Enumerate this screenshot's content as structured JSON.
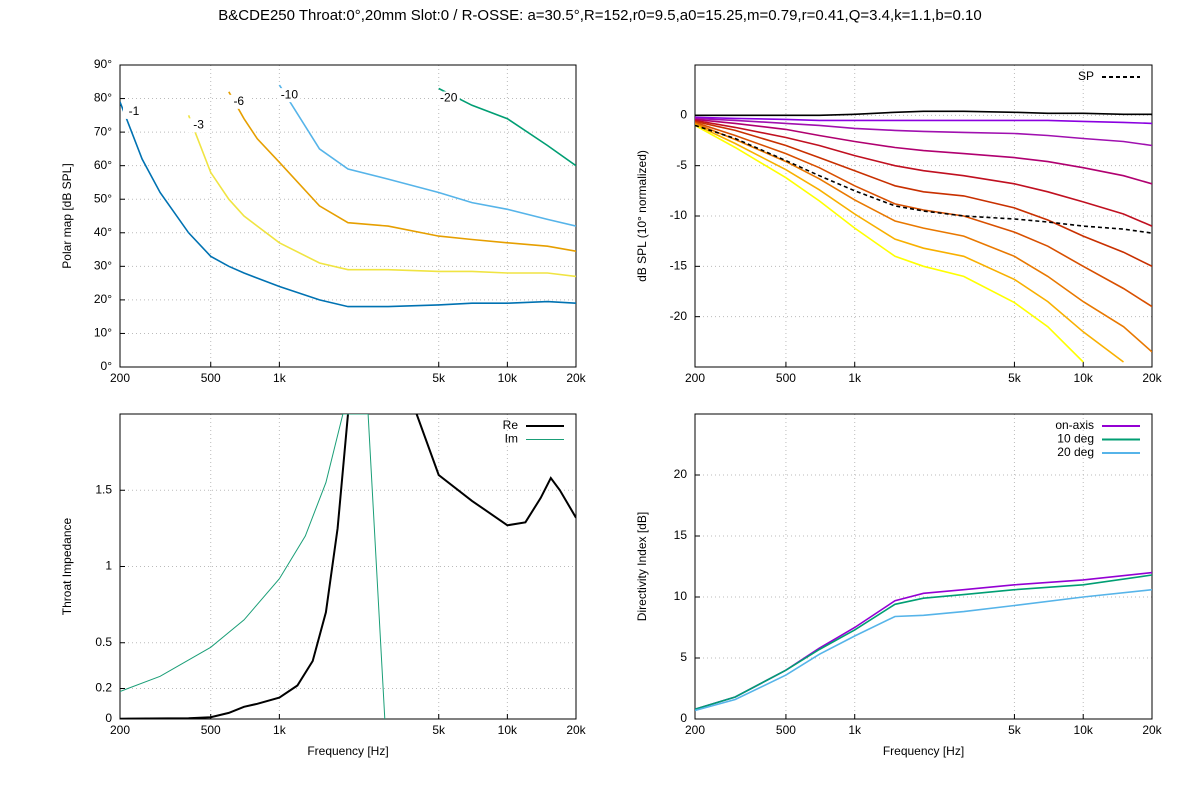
{
  "title": "B&CDE250 Throat:0°,20mm Slot:0 / R-OSSE: a=30.5°,R=152,r0=9.5,a0=15.25,m=0.79,r=0.41,Q=3.4,k=1.1,b=0.10",
  "chart_data": [
    {
      "type": "line",
      "ylabel": "Polar map [dB SPL]",
      "xlog": true,
      "grid": true,
      "contour_labels": true,
      "xlim": [
        200,
        20000
      ],
      "xticks": [
        200,
        500,
        {
          "value": 1000,
          "label": "1k"
        },
        {
          "value": 5000,
          "label": "5k"
        },
        {
          "value": 10000,
          "label": "10k"
        },
        {
          "value": 20000,
          "label": "20k"
        }
      ],
      "ylim": [
        0,
        90
      ],
      "yticks": [
        {
          "value": 0,
          "label": "0°"
        },
        {
          "value": 10,
          "label": "10°"
        },
        {
          "value": 20,
          "label": "20°"
        },
        {
          "value": 30,
          "label": "30°"
        },
        {
          "value": 40,
          "label": "40°"
        },
        {
          "value": 50,
          "label": "50°"
        },
        {
          "value": 60,
          "label": "60°"
        },
        {
          "value": 70,
          "label": "70°"
        },
        {
          "value": 80,
          "label": "80°"
        },
        {
          "value": 90,
          "label": "90°"
        }
      ],
      "x": [
        200,
        250,
        300,
        400,
        500,
        600,
        700,
        800,
        1000,
        1500,
        2000,
        3000,
        5000,
        7000,
        10000,
        15000,
        20000
      ],
      "series": [
        {
          "name": "-1",
          "color": "#0072b2",
          "values": [
            79,
            62,
            52,
            40,
            33,
            30,
            28,
            26.5,
            24,
            20,
            18,
            18,
            18.5,
            19,
            19,
            19.5,
            19
          ]
        },
        {
          "name": "-3",
          "color": "#f0e442",
          "values": [
            null,
            null,
            null,
            75,
            58,
            50,
            45,
            42,
            37,
            31,
            29,
            29,
            28.5,
            28.5,
            28,
            28,
            27
          ]
        },
        {
          "name": "-6",
          "color": "#e69f00",
          "values": [
            null,
            null,
            null,
            null,
            null,
            82,
            74,
            68,
            61,
            48,
            43,
            42,
            39,
            38,
            37,
            36,
            34.5
          ]
        },
        {
          "name": "-10",
          "color": "#56b4e9",
          "values": [
            null,
            null,
            null,
            null,
            null,
            null,
            null,
            null,
            84,
            65,
            59,
            56,
            52,
            49,
            47,
            44,
            42
          ]
        },
        {
          "name": "-20",
          "color": "#009e73",
          "values": [
            null,
            null,
            null,
            null,
            null,
            null,
            null,
            null,
            null,
            null,
            null,
            null,
            83,
            78,
            74,
            66,
            60
          ]
        }
      ]
    },
    {
      "type": "line",
      "ylabel": "dB SPL (10° normalized)",
      "xlog": true,
      "grid": true,
      "legend": "upper right",
      "xlim": [
        200,
        20000
      ],
      "xticks": [
        200,
        500,
        {
          "value": 1000,
          "label": "1k"
        },
        {
          "value": 5000,
          "label": "5k"
        },
        {
          "value": 10000,
          "label": "10k"
        },
        {
          "value": 20000,
          "label": "20k"
        }
      ],
      "ylim": [
        -25,
        5
      ],
      "yticks": [
        0,
        -5,
        -10,
        -15,
        -20
      ],
      "x": [
        200,
        300,
        500,
        700,
        1000,
        1500,
        2000,
        3000,
        5000,
        7000,
        10000,
        15000,
        20000
      ],
      "series": [
        {
          "color": "#000000",
          "values": [
            0,
            0,
            0,
            0,
            0.1,
            0.3,
            0.4,
            0.4,
            0.3,
            0.2,
            0.2,
            0.1,
            0.1
          ]
        },
        {
          "color": "#8a00e0",
          "values": [
            -0.2,
            -0.3,
            -0.4,
            -0.5,
            -0.5,
            -0.5,
            -0.5,
            -0.5,
            -0.5,
            -0.5,
            -0.6,
            -0.7,
            -0.8
          ]
        },
        {
          "color": "#a010b0",
          "values": [
            -0.3,
            -0.5,
            -0.8,
            -1,
            -1.3,
            -1.5,
            -1.6,
            -1.7,
            -1.8,
            -2,
            -2.3,
            -2.6,
            -3
          ]
        },
        {
          "color": "#b00070",
          "values": [
            -0.4,
            -0.8,
            -1.4,
            -2,
            -2.6,
            -3.2,
            -3.5,
            -3.8,
            -4.2,
            -4.6,
            -5.2,
            -6,
            -6.8
          ]
        },
        {
          "color": "#c01020",
          "values": [
            -0.5,
            -1.2,
            -2.2,
            -3,
            -4,
            -5,
            -5.5,
            -6,
            -6.8,
            -7.6,
            -8.6,
            -9.8,
            -11
          ]
        },
        {
          "color": "#c83000",
          "values": [
            -0.6,
            -1.5,
            -3,
            -4.2,
            -5.5,
            -7,
            -7.6,
            -8,
            -9.2,
            -10.4,
            -12,
            -13.6,
            -15
          ]
        },
        {
          "color": "#d85000",
          "values": [
            -0.7,
            -2,
            -3.8,
            -5.2,
            -7,
            -8.8,
            -9.4,
            -10,
            -11.6,
            -13,
            -15,
            -17.2,
            -19
          ]
        },
        {
          "color": "#e87800",
          "values": [
            -0.8,
            -2.4,
            -4.6,
            -6.3,
            -8.4,
            -10.5,
            -11.2,
            -12,
            -14,
            -16,
            -18.5,
            -21,
            -23.5
          ]
        },
        {
          "color": "#f8b000",
          "values": [
            -0.9,
            -2.8,
            -5.4,
            -7.4,
            -9.8,
            -12.3,
            -13.2,
            -14,
            -16.3,
            -18.5,
            -21.5,
            -24.5,
            null
          ]
        },
        {
          "color": "#ffff00",
          "values": [
            -1,
            -3.2,
            -6.2,
            -8.5,
            -11.2,
            -14,
            -15,
            -16,
            -18.6,
            -21,
            -24.5,
            null,
            null
          ]
        },
        {
          "name": "SP",
          "color": "#000000",
          "dashed": true,
          "values": [
            -1,
            -2.3,
            -4.5,
            -6,
            -7.5,
            -9,
            -9.5,
            -10,
            -10.3,
            -10.6,
            -11,
            -11.3,
            -11.7
          ]
        }
      ]
    },
    {
      "type": "line",
      "ylabel": "Throat Impedance",
      "xlabel": "Frequency [Hz]",
      "xlog": true,
      "grid": true,
      "legend": "upper right",
      "xlim": [
        200,
        20000
      ],
      "xticks": [
        200,
        500,
        {
          "value": 1000,
          "label": "1k"
        },
        {
          "value": 5000,
          "label": "5k"
        },
        {
          "value": 10000,
          "label": "10k"
        },
        {
          "value": 20000,
          "label": "20k"
        }
      ],
      "ylim": [
        0,
        2
      ],
      "yticks": [
        0,
        0.2,
        0.5,
        1,
        1.5
      ],
      "series": [
        {
          "name": "Re",
          "color": "#000000",
          "width": 2,
          "x": [
            200,
            400,
            500,
            600,
            700,
            800,
            1000,
            1200,
            1400,
            1600,
            1800,
            2000,
            3000,
            4000,
            5000,
            7000,
            10000,
            12000,
            14000,
            15500,
            17000,
            20000
          ],
          "values": [
            0.002,
            0.005,
            0.012,
            0.04,
            0.08,
            0.1,
            0.14,
            0.22,
            0.38,
            0.7,
            1.25,
            2,
            null,
            2,
            1.6,
            1.43,
            1.27,
            1.29,
            1.45,
            1.58,
            1.5,
            1.32
          ]
        },
        {
          "name": "Im",
          "color": "#1a9e77",
          "width": 1,
          "x": [
            200,
            300,
            500,
            700,
            1000,
            1300,
            1600,
            1900,
            2450,
            2900
          ],
          "values": [
            0.18,
            0.28,
            0.47,
            0.65,
            0.92,
            1.2,
            1.55,
            2,
            2,
            0
          ]
        }
      ]
    },
    {
      "type": "line",
      "ylabel": "Directivity Index [dB]",
      "xlabel": "Frequency [Hz]",
      "xlog": true,
      "grid": true,
      "legend": "upper right",
      "xlim": [
        200,
        20000
      ],
      "xticks": [
        200,
        500,
        {
          "value": 1000,
          "label": "1k"
        },
        {
          "value": 5000,
          "label": "5k"
        },
        {
          "value": 10000,
          "label": "10k"
        },
        {
          "value": 20000,
          "label": "20k"
        }
      ],
      "ylim": [
        0,
        25
      ],
      "yticks": [
        0,
        5,
        10,
        15,
        20
      ],
      "x": [
        200,
        300,
        500,
        700,
        1000,
        1500,
        2000,
        3000,
        5000,
        10000,
        20000
      ],
      "series": [
        {
          "name": "on-axis",
          "color": "#9400d3",
          "values": [
            0.8,
            1.8,
            4,
            5.8,
            7.5,
            9.7,
            10.3,
            10.6,
            11,
            11.4,
            12
          ]
        },
        {
          "name": "10 deg",
          "color": "#009e73",
          "values": [
            0.8,
            1.8,
            4,
            5.7,
            7.3,
            9.4,
            9.9,
            10.2,
            10.6,
            11,
            11.8
          ]
        },
        {
          "name": "20 deg",
          "color": "#56b4e9",
          "values": [
            0.7,
            1.6,
            3.6,
            5.3,
            6.8,
            8.4,
            8.5,
            8.8,
            9.3,
            10,
            10.6
          ]
        }
      ]
    }
  ]
}
